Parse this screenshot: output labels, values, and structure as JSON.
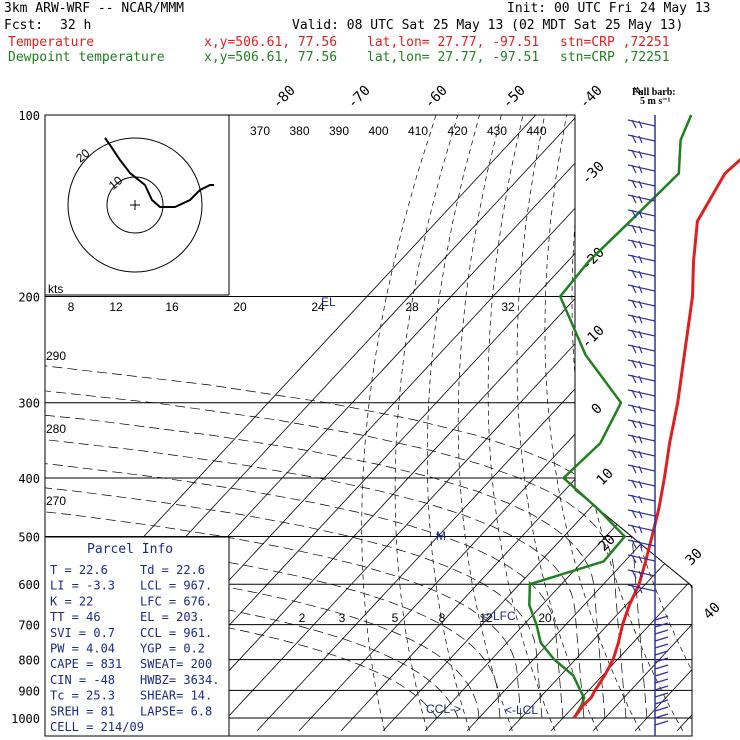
{
  "header": {
    "model": "3km ARW-WRF -- NCAR/MMM",
    "init": "Init: 00 UTC Fri 24 May 13",
    "fcst_label": "Fcst:",
    "fcst_hours": "32 h",
    "valid": "Valid: 08 UTC Sat 25 May 13 (02 MDT Sat 25 May 13)",
    "temp_line": {
      "label": "Temperature",
      "xy": "x,y=506.61, 77.56",
      "latlon": "lat,lon= 27.77, -97.51",
      "stn": "stn=CRP ,72251"
    },
    "dew_line": {
      "label": "Dewpoint temperature",
      "xy": "x,y=506.61, 77.56",
      "latlon": "lat,lon= 27.77, -97.51",
      "stn": "stn=CRP ,72251"
    }
  },
  "colors": {
    "temperature": "#e02020",
    "dewpoint": "#208020",
    "wind": "#3030a0",
    "axes": "#000000"
  },
  "barb_legend": {
    "title": "Full barb:",
    "units": "5 m s⁻¹"
  },
  "parcel_info": {
    "title": "Parcel Info",
    "rows": [
      {
        "a": "T  =    22.6",
        "b": "Td =   22.6"
      },
      {
        "a": "LI =    -3.3",
        "b": "LCL =  967."
      },
      {
        "a": "K  =      22",
        "b": "LFC =  676."
      },
      {
        "a": "TT =      46",
        "b": "EL  =  203."
      },
      {
        "a": "SVI =    0.7",
        "b": "CCL =  961."
      },
      {
        "a": "PW =    4.04",
        "b": "YGP =   0.2"
      },
      {
        "a": "CAPE =   831",
        "b": "SWEAT= 200"
      },
      {
        "a": "CIN =    -48",
        "b": "HWBZ= 3634."
      },
      {
        "a": "Tc =    25.3",
        "b": "SHEAR=  14."
      },
      {
        "a": "SREH =    81",
        "b": "LAPSE=  6.8"
      },
      {
        "a": "CELL = 214/09",
        "b": ""
      }
    ]
  },
  "hodograph": {
    "units_label": "kts",
    "ring_labels": [
      "10",
      "20"
    ]
  },
  "annotations": {
    "el": "EL",
    "lfc": "<-LFC",
    "ccl": "CCL->",
    "lcl": "<-LCL",
    "m": "M"
  },
  "chart_data": {
    "type": "line",
    "title": "",
    "pressure_ticks": [
      "100",
      "200",
      "300",
      "400",
      "500",
      "600",
      "700",
      "800",
      "900",
      "1000"
    ],
    "isotherm_labels": [
      "-80",
      "-70",
      "-60",
      "-50",
      "-40",
      "-30",
      "-20",
      "-10",
      "0",
      "10",
      "20",
      "30",
      "40"
    ],
    "theta_e_labels": [
      "370",
      "380",
      "390",
      "400",
      "410",
      "420",
      "430",
      "440"
    ],
    "mixing_ratio_labels": [
      "2",
      "3",
      "5",
      "8",
      "12",
      "20"
    ],
    "upper_mixing_labels": [
      "8",
      "12",
      "16",
      "20",
      "24",
      "28",
      "32"
    ],
    "theta_labels": [
      "290",
      "280",
      "270"
    ],
    "ylim": [
      100,
      1000
    ],
    "series": [
      {
        "name": "Temperature",
        "pressure": [
          1000,
          950,
          925,
          900,
          850,
          800,
          750,
          700,
          650,
          600,
          550,
          500,
          450,
          400,
          350,
          300,
          250,
          200,
          175,
          150,
          125,
          110,
          100
        ],
        "value": [
          22.6,
          22.0,
          22.2,
          21.5,
          20.5,
          19.0,
          16.5,
          13.5,
          10.8,
          8.5,
          5.0,
          1.0,
          -3.5,
          -9.0,
          -15.5,
          -22.5,
          -31.5,
          -42.5,
          -50.0,
          -58.0,
          -62.0,
          -60.5,
          -58.0
        ]
      },
      {
        "name": "Dewpoint temperature",
        "pressure": [
          1000,
          950,
          925,
          900,
          850,
          800,
          750,
          700,
          650,
          600,
          550,
          500,
          450,
          400,
          350,
          300,
          250,
          200,
          175,
          150,
          125,
          110,
          100
        ],
        "value": [
          22.6,
          21.5,
          20.5,
          18.0,
          13.0,
          5.0,
          -2.0,
          -7.0,
          -13.0,
          -17.5,
          -5.0,
          -5.5,
          -18.0,
          -33.0,
          -32.0,
          -36.0,
          -55.0,
          -74.0,
          -75.0,
          -74.0,
          -73.0,
          -80.0,
          -83.0
        ]
      }
    ]
  }
}
